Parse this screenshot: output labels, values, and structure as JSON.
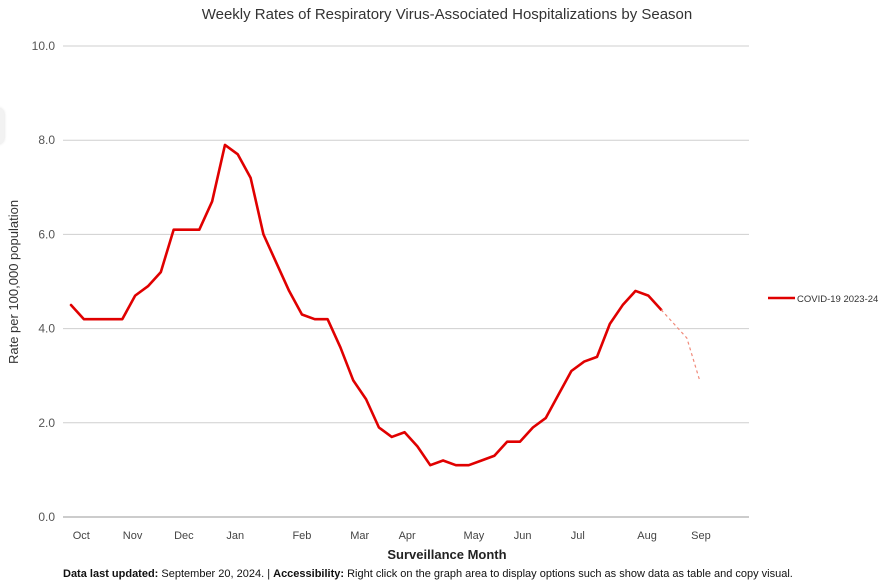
{
  "chart_data": {
    "type": "line",
    "title": "Weekly Rates of Respiratory Virus-Associated Hospitalizations by Season",
    "xlabel": "Surveillance Month",
    "ylabel": "Rate per 100,000 population",
    "ylim": [
      0,
      10
    ],
    "yticks": [
      "0.0",
      "2.0",
      "4.0",
      "6.0",
      "8.0",
      "10.0"
    ],
    "ytick_values": [
      0,
      2,
      4,
      6,
      8,
      10
    ],
    "month_labels": [
      "Oct",
      "Nov",
      "Dec",
      "Jan",
      "Feb",
      "Mar",
      "Apr",
      "May",
      "Jun",
      "Jul",
      "Aug",
      "Sep"
    ],
    "month_weeks": [
      0.8,
      4.8,
      8.8,
      12.8,
      18,
      22.5,
      26.2,
      31.4,
      35.2,
      39.5,
      44.9,
      49.1
    ],
    "grid": true,
    "legend_position": "right",
    "series": [
      {
        "name": "COVID-19 2023-24",
        "color": "#e00000",
        "x": [
          0,
          1,
          2,
          3,
          4,
          5,
          6,
          7,
          8,
          9,
          10,
          11,
          12,
          13,
          14,
          15,
          16,
          17,
          18,
          19,
          20,
          21,
          22,
          23,
          24,
          25,
          26,
          27,
          28,
          29,
          30,
          31,
          32,
          33,
          34,
          35,
          36,
          37,
          38,
          39,
          40,
          41,
          42,
          43,
          44,
          45,
          46
        ],
        "values": [
          4.5,
          4.2,
          4.2,
          4.2,
          4.2,
          4.7,
          4.9,
          5.2,
          6.1,
          6.1,
          6.1,
          6.7,
          7.9,
          7.7,
          7.2,
          6.0,
          5.4,
          4.8,
          4.3,
          4.2,
          4.2,
          3.6,
          2.9,
          2.5,
          1.9,
          1.7,
          1.8,
          1.5,
          1.1,
          1.2,
          1.1,
          1.1,
          1.2,
          1.3,
          1.6,
          1.6,
          1.9,
          2.1,
          2.6,
          3.1,
          3.3,
          3.4,
          4.1,
          4.5,
          4.8,
          4.7,
          4.4
        ]
      }
    ],
    "provisional": {
      "x": [
        47,
        48,
        49
      ],
      "values": [
        4.1,
        3.8,
        2.9
      ]
    }
  },
  "footer": {
    "updated_label": "Data last updated:",
    "updated_value": " September 20, 2024. | ",
    "accessibility_label": "Accessibility:",
    "accessibility_text": " Right click on the graph area to display options such as show data as table and copy visual."
  }
}
